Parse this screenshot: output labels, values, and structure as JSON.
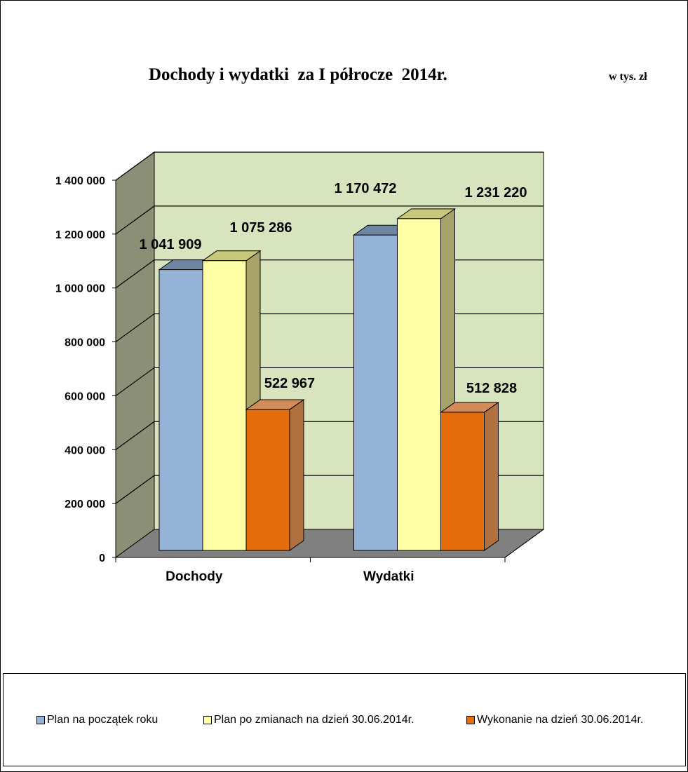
{
  "header": {
    "title": "Dochody i wydatki  za I półrocze  2014r.",
    "unit": "w tys. zł"
  },
  "chart_data": {
    "type": "bar",
    "title": "Dochody i wydatki  za I półrocze  2014r.",
    "unit_note": "w tys. zł",
    "categories": [
      "Dochody",
      "Wydatki"
    ],
    "series": [
      {
        "name": "Plan na początek roku",
        "values": [
          1041909,
          1170472
        ],
        "labels": [
          "1 041 909",
          "1 170 472"
        ],
        "color": "#95B3D7",
        "top_color": "#6F86A3",
        "side_color": "#7390B3"
      },
      {
        "name": "Plan po zmianach na dzień 30.06.2014r.",
        "values": [
          1075286,
          1231220
        ],
        "labels": [
          "1 075 286",
          "1 231 220"
        ],
        "color": "#FFFFA6",
        "top_color": "#C8C87A",
        "side_color": "#A7A368"
      },
      {
        "name": "Wykonanie na dzień 30.06.2014r.",
        "values": [
          522967,
          512828
        ],
        "labels": [
          "522 967",
          "512 828"
        ],
        "color": "#E46C0A",
        "top_color": "#D38B5A",
        "side_color": "#B07040"
      }
    ],
    "ylim": [
      0,
      1400000
    ],
    "yticks": [
      0,
      200000,
      400000,
      600000,
      800000,
      1000000,
      1200000,
      1400000
    ],
    "ytick_labels": [
      "0",
      "200 000",
      "400 000",
      "600 000",
      "800 000",
      "1 000 000",
      "1 200 000",
      "1 400 000"
    ],
    "grid": true,
    "legend_position": "bottom",
    "wall_color": "#D7E4BD",
    "side_wall_color": "#8B8F75",
    "floor_color": "#808080"
  },
  "legend": {
    "items": [
      {
        "label": "Plan na początek roku",
        "color": "#95B3D7"
      },
      {
        "label": "Plan po zmianach na dzień 30.06.2014r.",
        "color": "#FFFFA6"
      },
      {
        "label": "Wykonanie na dzień 30.06.2014r.",
        "color": "#E46C0A"
      }
    ]
  }
}
